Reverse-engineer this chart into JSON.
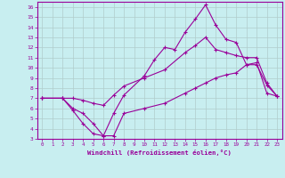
{
  "xlabel": "Windchill (Refroidissement éolien,°C)",
  "bg_color": "#c8eef0",
  "grid_color": "#b0cccc",
  "line_color": "#990099",
  "xlim": [
    -0.5,
    23.5
  ],
  "ylim": [
    3,
    16.5
  ],
  "xticks": [
    0,
    1,
    2,
    3,
    4,
    5,
    6,
    7,
    8,
    9,
    10,
    11,
    12,
    13,
    14,
    15,
    16,
    17,
    18,
    19,
    20,
    21,
    22,
    23
  ],
  "yticks": [
    3,
    4,
    5,
    6,
    7,
    8,
    9,
    10,
    11,
    12,
    13,
    14,
    15,
    16
  ],
  "line1_x": [
    0,
    2,
    3,
    4,
    5,
    6,
    7,
    8,
    10,
    12,
    14,
    15,
    16,
    17,
    18,
    19,
    20,
    21,
    22,
    23
  ],
  "line1_y": [
    7.0,
    7.0,
    5.8,
    4.5,
    3.5,
    3.3,
    3.3,
    5.5,
    6.0,
    6.5,
    7.5,
    8.0,
    8.5,
    9.0,
    9.3,
    9.5,
    10.3,
    10.5,
    7.5,
    7.2
  ],
  "line2_x": [
    0,
    2,
    3,
    4,
    5,
    6,
    7,
    8,
    10,
    12,
    14,
    15,
    16,
    17,
    18,
    19,
    20,
    21,
    22,
    23
  ],
  "line2_y": [
    7.0,
    7.0,
    7.0,
    6.8,
    6.5,
    6.3,
    7.3,
    8.2,
    9.0,
    9.8,
    11.5,
    12.2,
    13.0,
    11.8,
    11.5,
    11.2,
    11.0,
    11.0,
    8.5,
    7.2
  ],
  "line3_x": [
    0,
    2,
    3,
    4,
    5,
    6,
    7,
    8,
    10,
    11,
    12,
    13,
    14,
    15,
    16,
    17,
    18,
    19,
    20,
    21,
    22,
    23
  ],
  "line3_y": [
    7.0,
    7.0,
    6.0,
    5.5,
    4.5,
    3.3,
    5.5,
    7.3,
    9.2,
    10.8,
    12.0,
    11.8,
    13.5,
    14.8,
    16.2,
    14.2,
    12.8,
    12.5,
    10.3,
    10.3,
    8.3,
    7.2
  ]
}
